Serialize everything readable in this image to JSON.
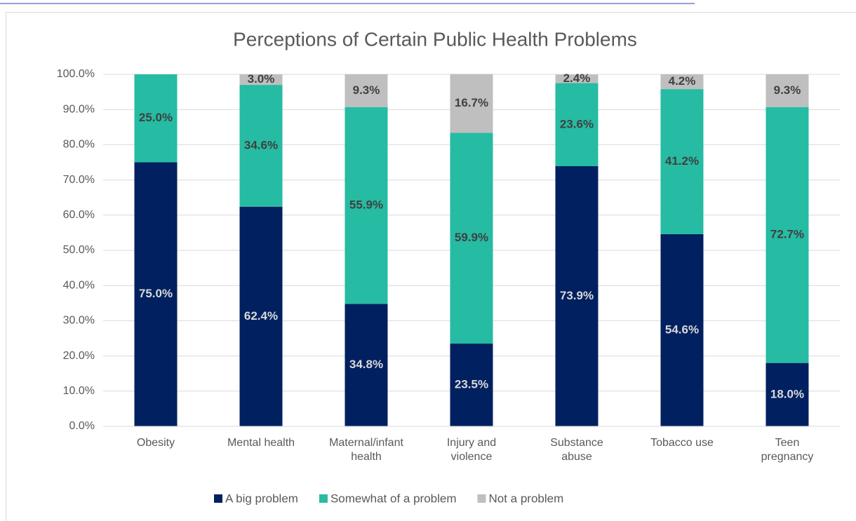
{
  "chart_data": {
    "type": "stacked_bar",
    "title": "Perceptions of Certain Public Health Problems",
    "categories": [
      "Obesity",
      "Mental health",
      "Maternal/infant health",
      "Injury and violence",
      "Substance abuse",
      "Tobacco use",
      "Teen pregnancy"
    ],
    "series": [
      {
        "name": "A big problem",
        "color": "#002060",
        "values": [
          75.0,
          62.4,
          34.8,
          23.5,
          73.9,
          54.6,
          18.0
        ],
        "value_labels": [
          "75.0%",
          "62.4%",
          "34.8%",
          "23.5%",
          "73.9%",
          "54.6%",
          "18.0%"
        ]
      },
      {
        "name": "Somewhat of a problem",
        "color": "#26bba3",
        "values": [
          25.0,
          34.6,
          55.9,
          59.9,
          23.6,
          41.2,
          72.7
        ],
        "value_labels": [
          "25.0%",
          "34.6%",
          "55.9%",
          "59.9%",
          "23.6%",
          "41.2%",
          "72.7%"
        ]
      },
      {
        "name": "Not a problem",
        "color": "#bfbfbf",
        "values": [
          0,
          3.0,
          9.3,
          16.7,
          2.4,
          4.2,
          9.3
        ],
        "value_labels": [
          null,
          "3.0%",
          "9.3%",
          "16.7%",
          "2.4%",
          "4.2%",
          "9.3%"
        ]
      }
    ],
    "ylim": [
      0,
      100
    ],
    "yticks": [
      {
        "value": 0,
        "label": "0.0%"
      },
      {
        "value": 10,
        "label": "10.0%"
      },
      {
        "value": 20,
        "label": "20.0%"
      },
      {
        "value": 30,
        "label": "30.0%"
      },
      {
        "value": 40,
        "label": "40.0%"
      },
      {
        "value": 50,
        "label": "50.0%"
      },
      {
        "value": 60,
        "label": "60.0%"
      },
      {
        "value": 70,
        "label": "70.0%"
      },
      {
        "value": 80,
        "label": "80.0%"
      },
      {
        "value": 90,
        "label": "90.0%"
      },
      {
        "value": 100,
        "label": "100.0%"
      }
    ],
    "grid": true,
    "legend": "bottom"
  }
}
